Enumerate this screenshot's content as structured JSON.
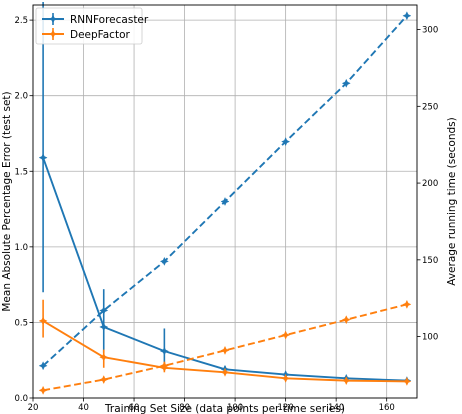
{
  "chart_data": {
    "type": "line",
    "xlabel": "Training Set Size (data points per time series)",
    "ylabel_left": "Mean Absolute Percentage Error (test set)",
    "ylabel_right": "Average running time (seconds)",
    "xlim": [
      20,
      172
    ],
    "ylim_left": [
      0,
      2.6
    ],
    "ylim_right": [
      60,
      316
    ],
    "xticks": [
      20,
      40,
      60,
      80,
      100,
      120,
      140,
      160
    ],
    "yticks_left": [
      0.0,
      0.5,
      1.0,
      1.5,
      2.0,
      2.5
    ],
    "ytick_labels_left": [
      "0.0",
      "0.5",
      "1.0",
      "1.5",
      "2.0",
      "2.5"
    ],
    "yticks_right": [
      100,
      150,
      200,
      250,
      300
    ],
    "grid": true,
    "legend_position": "top-left",
    "legend": [
      "RNNForecaster",
      "DeepFactor"
    ],
    "x": [
      24,
      48,
      72,
      96,
      120,
      144,
      168
    ],
    "series": [
      {
        "name": "RNNForecaster",
        "metric": "error",
        "axis": "left",
        "color": "#1f77b4",
        "linestyle": "solid",
        "marker": "star",
        "values": [
          1.59,
          0.47,
          0.31,
          0.19,
          0.155,
          0.13,
          0.115
        ],
        "err_low": [
          0.7,
          0.3,
          0.2,
          0.18,
          0.15,
          0.125,
          0.11
        ],
        "err_high": [
          2.62,
          0.72,
          0.46,
          0.21,
          0.165,
          0.14,
          0.12
        ]
      },
      {
        "name": "DeepFactor",
        "metric": "error",
        "axis": "left",
        "color": "#ff7f0e",
        "linestyle": "solid",
        "marker": "star",
        "values": [
          0.51,
          0.27,
          0.2,
          0.17,
          0.13,
          0.115,
          0.11
        ],
        "err_low": [
          0.4,
          0.2,
          0.17,
          0.16,
          0.125,
          0.11,
          0.105
        ],
        "err_high": [
          0.65,
          0.32,
          0.24,
          0.18,
          0.135,
          0.12,
          0.115
        ]
      },
      {
        "name": "RNNForecaster",
        "metric": "running_time",
        "axis": "right",
        "color": "#1f77b4",
        "linestyle": "dashed",
        "marker": "star",
        "values": [
          81,
          117,
          149,
          188,
          227,
          265,
          309
        ]
      },
      {
        "name": "DeepFactor",
        "metric": "running_time",
        "axis": "right",
        "color": "#ff7f0e",
        "linestyle": "dashed",
        "marker": "star",
        "values": [
          65,
          72,
          81,
          91,
          101,
          111,
          121
        ]
      }
    ]
  }
}
